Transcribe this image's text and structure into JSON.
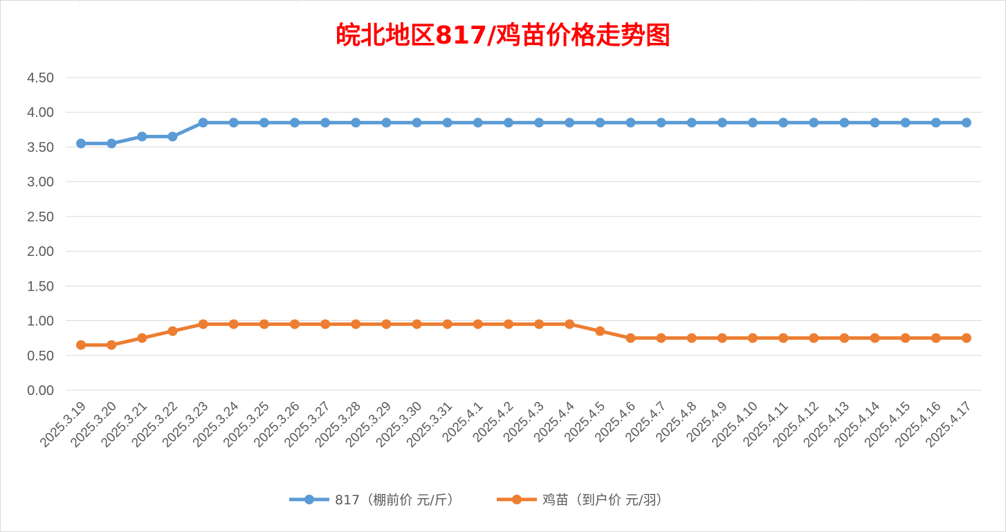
{
  "chart_data": {
    "type": "line",
    "title": "皖北地区817/鸡苗价格走势图",
    "title_color": "#ff0000",
    "categories": [
      "2025.3.19",
      "2025.3.20",
      "2025.3.21",
      "2025.3.22",
      "2025.3.23",
      "2025.3.24",
      "2025.3.25",
      "2025.3.26",
      "2025.3.27",
      "2025.3.28",
      "2025.3.29",
      "2025.3.30",
      "2025.3.31",
      "2025.4.1",
      "2025.4.2",
      "2025.4.3",
      "2025.4.4",
      "2025.4.5",
      "2025.4.6",
      "2025.4.7",
      "2025.4.8",
      "2025.4.9",
      "2025.4.10",
      "2025.4.11",
      "2025.4.12",
      "2025.4.13",
      "2025.4.14",
      "2025.4.15",
      "2025.4.16",
      "2025.4.17"
    ],
    "series": [
      {
        "name": "817（棚前价 元/斤）",
        "color": "#5b9bd5",
        "values": [
          3.55,
          3.55,
          3.65,
          3.65,
          3.85,
          3.85,
          3.85,
          3.85,
          3.85,
          3.85,
          3.85,
          3.85,
          3.85,
          3.85,
          3.85,
          3.85,
          3.85,
          3.85,
          3.85,
          3.85,
          3.85,
          3.85,
          3.85,
          3.85,
          3.85,
          3.85,
          3.85,
          3.85,
          3.85,
          3.85
        ]
      },
      {
        "name": "鸡苗（到户价 元/羽）",
        "color": "#ed7d31",
        "values": [
          0.65,
          0.65,
          0.75,
          0.85,
          0.95,
          0.95,
          0.95,
          0.95,
          0.95,
          0.95,
          0.95,
          0.95,
          0.95,
          0.95,
          0.95,
          0.95,
          0.95,
          0.85,
          0.75,
          0.75,
          0.75,
          0.75,
          0.75,
          0.75,
          0.75,
          0.75,
          0.75,
          0.75,
          0.75,
          0.75
        ]
      }
    ],
    "yticks": [
      "0.00",
      "0.50",
      "1.00",
      "1.50",
      "2.00",
      "2.50",
      "3.00",
      "3.50",
      "4.00",
      "4.50"
    ],
    "ylim": [
      0,
      4.5
    ],
    "xlabel": "",
    "ylabel": "",
    "grid": true,
    "legend_position": "bottom"
  }
}
